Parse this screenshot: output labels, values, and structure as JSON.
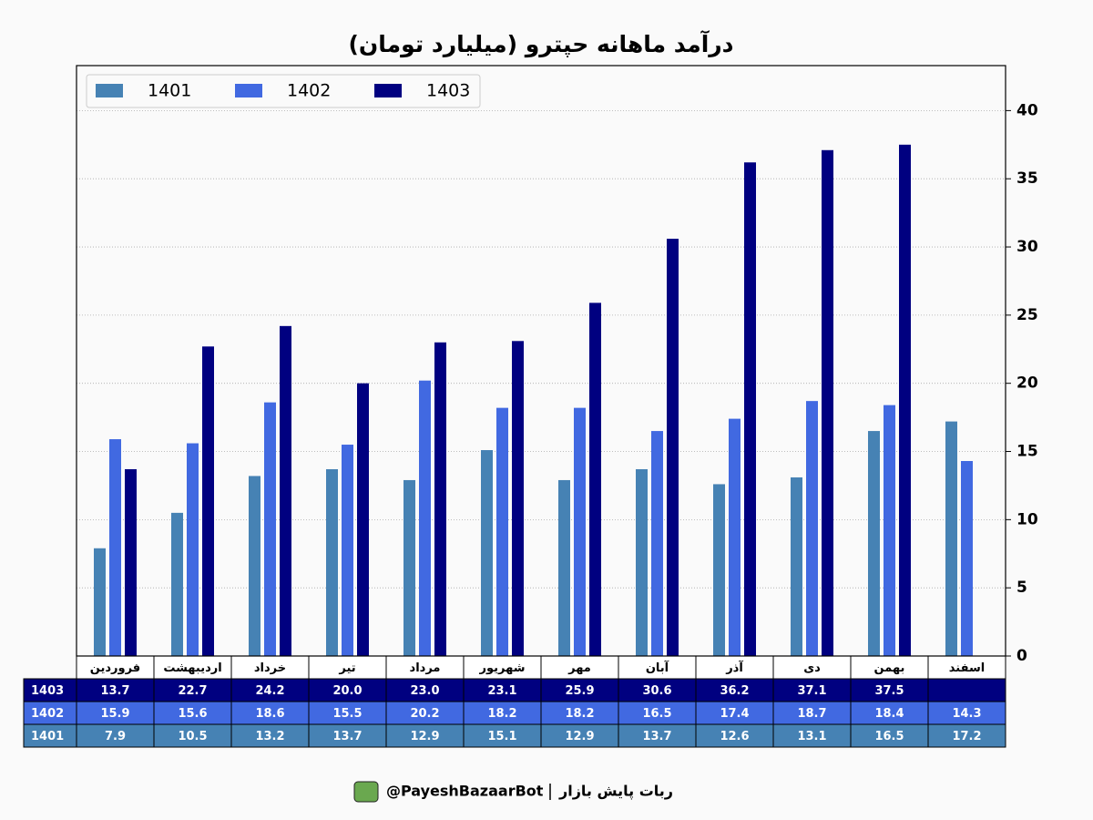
{
  "chart_data": {
    "type": "bar",
    "title": "درآمد ماهانه حپترو (میلیارد تومان)",
    "categories": [
      "فروردین",
      "اردیبهشت",
      "خرداد",
      "تیر",
      "مرداد",
      "شهریور",
      "مهر",
      "آبان",
      "آذر",
      "دی",
      "بهمن",
      "اسفند"
    ],
    "series": [
      {
        "name": "1401",
        "color": "#4682b4",
        "values": [
          7.9,
          10.5,
          13.2,
          13.7,
          12.9,
          15.1,
          12.9,
          13.7,
          12.6,
          13.1,
          16.5,
          17.2
        ],
        "value_labels": [
          "7.9",
          "10.5",
          "13.2",
          "13.7",
          "12.9",
          "15.1",
          "12.9",
          "13.7",
          "12.6",
          "13.1",
          "16.5",
          "17.2"
        ]
      },
      {
        "name": "1402",
        "color": "#4169e1",
        "values": [
          15.9,
          15.6,
          18.6,
          15.5,
          20.2,
          18.2,
          18.2,
          16.5,
          17.4,
          18.7,
          18.4,
          14.3
        ],
        "value_labels": [
          "15.9",
          "15.6",
          "18.6",
          "15.5",
          "20.2",
          "18.2",
          "18.2",
          "16.5",
          "17.4",
          "18.7",
          "18.4",
          "14.3"
        ]
      },
      {
        "name": "1403",
        "color": "#000080",
        "values": [
          13.7,
          22.7,
          24.2,
          20.0,
          23.0,
          23.1,
          25.9,
          30.6,
          36.2,
          37.1,
          37.5,
          null
        ],
        "value_labels": [
          "13.7",
          "22.7",
          "24.2",
          "20.0",
          "23.0",
          "23.1",
          "25.9",
          "30.6",
          "36.2",
          "37.1",
          "37.5",
          null
        ]
      }
    ],
    "ylim": [
      0,
      43.3
    ],
    "yticks": [
      0,
      5,
      10,
      15,
      20,
      25,
      30,
      35,
      40
    ],
    "grid": true,
    "legend": "upper-left",
    "source_label": "ربات پایش بازار",
    "source": "@PayeshBazaarBot"
  }
}
